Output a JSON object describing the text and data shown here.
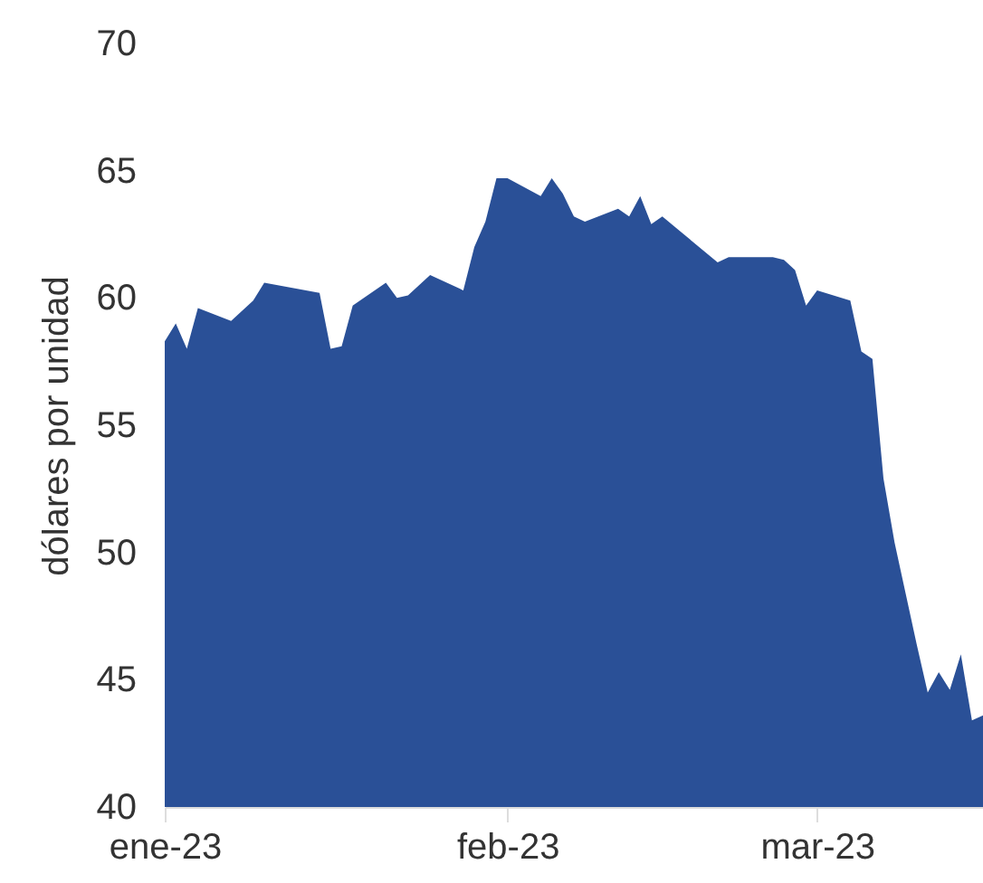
{
  "chart_data": {
    "type": "area",
    "ylabel": "dólares por unidad",
    "x": [
      "2023-01-01",
      "2023-01-02",
      "2023-01-03",
      "2023-01-04",
      "2023-01-07",
      "2023-01-09",
      "2023-01-10",
      "2023-01-15",
      "2023-01-16",
      "2023-01-17",
      "2023-01-18",
      "2023-01-21",
      "2023-01-22",
      "2023-01-23",
      "2023-01-25",
      "2023-01-28",
      "2023-01-29",
      "2023-01-30",
      "2023-01-31",
      "2023-02-01",
      "2023-02-04",
      "2023-02-05",
      "2023-02-06",
      "2023-02-07",
      "2023-02-08",
      "2023-02-11",
      "2023-02-12",
      "2023-02-13",
      "2023-02-14",
      "2023-02-15",
      "2023-02-20",
      "2023-02-21",
      "2023-02-25",
      "2023-02-26",
      "2023-02-27",
      "2023-02-28",
      "2023-03-01",
      "2023-03-04",
      "2023-03-05",
      "2023-03-06",
      "2023-03-07",
      "2023-03-08",
      "2023-03-09",
      "2023-03-10",
      "2023-03-11",
      "2023-03-12",
      "2023-03-13",
      "2023-03-14",
      "2023-03-15",
      "2023-03-16"
    ],
    "series": [
      {
        "color": "#2a5097",
        "values": [
          58.3,
          59.0,
          58.0,
          59.6,
          59.1,
          59.9,
          60.6,
          60.2,
          58.0,
          58.1,
          59.7,
          60.6,
          60.0,
          60.1,
          60.9,
          60.3,
          62.0,
          63.0,
          64.7,
          64.7,
          64.0,
          64.7,
          64.1,
          63.2,
          63.0,
          63.5,
          63.2,
          64.0,
          62.9,
          63.2,
          61.4,
          61.6,
          61.6,
          61.5,
          61.1,
          59.7,
          60.3,
          59.9,
          57.9,
          57.6,
          52.9,
          50.4,
          48.4,
          46.4,
          44.5,
          45.3,
          44.6,
          46.0,
          43.4,
          43.6
        ]
      }
    ],
    "xlim": [
      "2023-01-01",
      "2023-03-16"
    ],
    "xticks": [
      {
        "value": "2023-01-01",
        "label": "ene-23"
      },
      {
        "value": "2023-02-01",
        "label": "feb-23"
      },
      {
        "value": "2023-03-01",
        "label": "mar-23"
      }
    ],
    "ylim": [
      40,
      70
    ],
    "yticks": [
      40,
      45,
      50,
      55,
      60,
      65,
      70
    ],
    "grid": false
  }
}
